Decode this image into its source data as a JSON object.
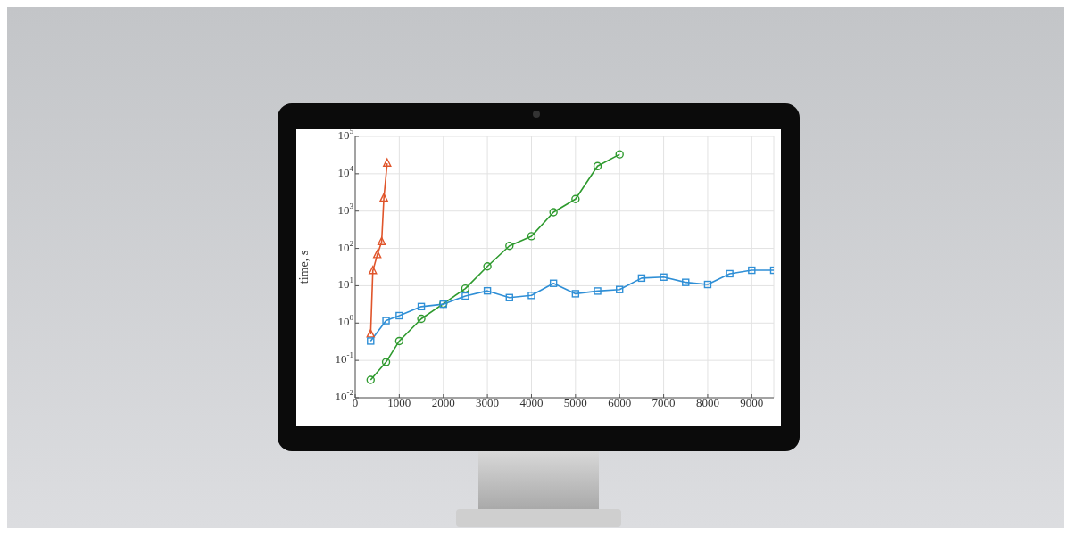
{
  "chart_data": {
    "type": "line",
    "ylabel": "time, s",
    "log": "y",
    "grid": true,
    "xlim": [
      0,
      9500
    ],
    "xticks": [
      0,
      1000,
      2000,
      3000,
      4000,
      5000,
      6000,
      7000,
      8000,
      9000
    ],
    "ylim": [
      0.01,
      100000
    ],
    "yticks": [
      {
        "value": 0.01,
        "label": "10$^{-2}$"
      },
      {
        "value": 0.1,
        "label": "10$^{-1}$"
      },
      {
        "value": 1,
        "label": "10$^{0}$"
      },
      {
        "value": 10,
        "label": "10$^{1}$"
      },
      {
        "value": 100,
        "label": "10$^{2}$"
      },
      {
        "value": 1000,
        "label": "10$^{3}$"
      },
      {
        "value": 10000,
        "label": "10$^{4}$"
      },
      {
        "value": 100000,
        "label": "10$^{5}$"
      }
    ],
    "series": [
      {
        "color": "#e0552b",
        "marker": "triangle",
        "x": [
          350,
          400,
          500,
          600,
          650,
          725
        ],
        "values": [
          0.5,
          25,
          67,
          150,
          2200,
          19000
        ]
      },
      {
        "color": "#2e9a2e",
        "marker": "circle",
        "x": [
          350,
          700,
          1000,
          1500,
          2000,
          2500,
          3000,
          3500,
          4000,
          4500,
          5000,
          5500,
          6000
        ],
        "values": [
          0.03,
          0.09,
          0.33,
          1.3,
          3.3,
          8.4,
          33,
          117,
          212,
          930,
          2100,
          16000,
          33000
        ]
      },
      {
        "color": "#2f8fd6",
        "marker": "square",
        "x": [
          350,
          700,
          1000,
          1500,
          2000,
          2500,
          3000,
          3500,
          4000,
          4500,
          5000,
          5500,
          6000,
          6500,
          7000,
          7500,
          8000,
          8500,
          9000,
          9500
        ],
        "values": [
          0.33,
          1.16,
          1.58,
          2.76,
          3.2,
          5.3,
          7.3,
          4.8,
          5.5,
          11.6,
          6.1,
          7.2,
          7.9,
          16,
          17,
          12.3,
          10.8,
          21,
          26,
          26
        ]
      }
    ]
  }
}
